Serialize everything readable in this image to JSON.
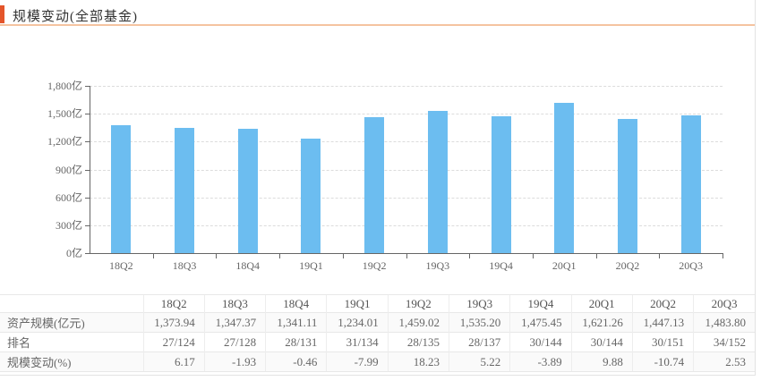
{
  "header": {
    "title": "规模变动(全部基金)"
  },
  "colors": {
    "accent": "#e4552a",
    "header_underline": "#f5c3a0",
    "bar": "#6cbdf0",
    "axis": "#666666",
    "gridline": "#dcdcdc",
    "text": "#666666"
  },
  "chart_data": {
    "type": "bar",
    "title": "规模变动(全部基金)",
    "categories": [
      "18Q2",
      "18Q3",
      "18Q4",
      "19Q1",
      "19Q2",
      "19Q3",
      "19Q4",
      "20Q1",
      "20Q2",
      "20Q3"
    ],
    "values": [
      1373.94,
      1347.37,
      1341.11,
      1234.01,
      1459.02,
      1535.2,
      1475.45,
      1621.26,
      1447.13,
      1483.8
    ],
    "xlabel": "",
    "ylabel": "亿",
    "ylim": [
      0,
      1800
    ],
    "ytick_step": 300,
    "ytick_labels": [
      "0亿",
      "300亿",
      "600亿",
      "900亿",
      "1,200亿",
      "1,500亿",
      "1,800亿"
    ],
    "grid": "horizontal-dashed",
    "legend": "none",
    "bar_color": "#6cbdf0"
  },
  "table": {
    "corner_label": "",
    "columns": [
      "18Q2",
      "18Q3",
      "18Q4",
      "19Q1",
      "19Q2",
      "19Q3",
      "19Q4",
      "20Q1",
      "20Q2",
      "20Q3"
    ],
    "rows": [
      {
        "label": "资产规模(亿元)",
        "values": [
          "1,373.94",
          "1,347.37",
          "1,341.11",
          "1,234.01",
          "1,459.02",
          "1,535.20",
          "1,475.45",
          "1,621.26",
          "1,447.13",
          "1,483.80"
        ]
      },
      {
        "label": "排名",
        "values": [
          "27/124",
          "27/128",
          "28/131",
          "31/134",
          "28/135",
          "28/137",
          "30/144",
          "30/144",
          "30/151",
          "34/152"
        ]
      },
      {
        "label": "规模变动(%)",
        "values": [
          "6.17",
          "-1.93",
          "-0.46",
          "-7.99",
          "18.23",
          "5.22",
          "-3.89",
          "9.88",
          "-10.74",
          "2.53"
        ]
      }
    ]
  }
}
